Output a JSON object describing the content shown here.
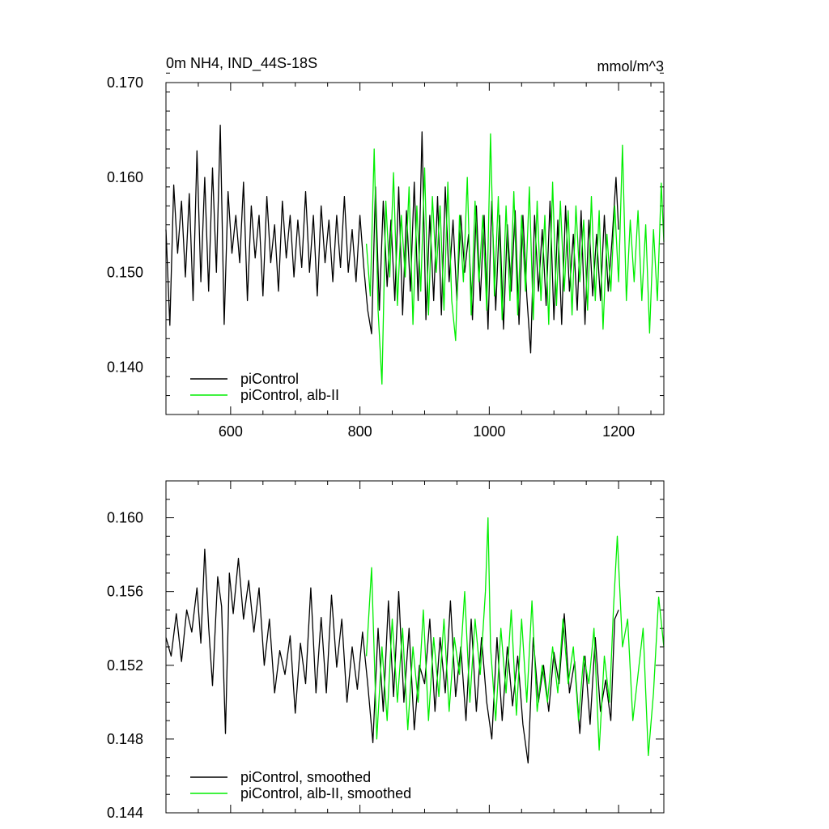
{
  "colors": {
    "control": "#000000",
    "alb": "#00ee00"
  },
  "chart_data": [
    {
      "type": "line",
      "title": "0m NH4, IND_44S-18S",
      "units": "mmol/m^3",
      "xlim": [
        500,
        1270
      ],
      "ylim": [
        0.135,
        0.17
      ],
      "x_ticks": [
        600,
        800,
        1000,
        1200
      ],
      "x_tick_labels": [
        "600",
        "800",
        "1000",
        "1200"
      ],
      "x_minor_step": 50,
      "y_ticks": [
        0.14,
        0.15,
        0.16,
        0.17
      ],
      "y_tick_labels": [
        "0.140",
        "0.150",
        "0.160",
        "0.170"
      ],
      "y_minor_step": 0.002,
      "legend": [
        "piControl",
        "piControl, alb-II"
      ],
      "legend_position": "bottom-left",
      "series": [
        {
          "name": "piControl",
          "color": "#000000",
          "x": [
            500,
            506,
            512,
            518,
            524,
            530,
            536,
            542,
            548,
            554,
            560,
            566,
            572,
            578,
            584,
            590,
            596,
            602,
            608,
            614,
            620,
            626,
            632,
            638,
            644,
            650,
            656,
            662,
            668,
            674,
            680,
            686,
            692,
            698,
            704,
            710,
            716,
            722,
            728,
            734,
            740,
            746,
            752,
            758,
            764,
            770,
            776,
            782,
            788,
            794,
            800,
            806,
            812,
            818,
            824,
            830,
            836,
            842,
            848,
            854,
            860,
            866,
            872,
            878,
            884,
            890,
            896,
            902,
            908,
            914,
            920,
            926,
            932,
            938,
            944,
            950,
            956,
            962,
            968,
            974,
            980,
            986,
            992,
            998,
            1004,
            1010,
            1016,
            1022,
            1028,
            1034,
            1040,
            1046,
            1052,
            1058,
            1064,
            1070,
            1076,
            1082,
            1088,
            1094,
            1100,
            1106,
            1112,
            1118,
            1124,
            1130,
            1136,
            1142,
            1148,
            1154,
            1160,
            1166,
            1172,
            1178,
            1184,
            1190,
            1196,
            1200
          ],
          "y": [
            0.1545,
            0.1444,
            0.1592,
            0.152,
            0.1575,
            0.1495,
            0.1583,
            0.147,
            0.1628,
            0.149,
            0.16,
            0.148,
            0.161,
            0.15,
            0.1655,
            0.1445,
            0.1585,
            0.152,
            0.156,
            0.151,
            0.1595,
            0.147,
            0.157,
            0.1515,
            0.156,
            0.1475,
            0.158,
            0.151,
            0.155,
            0.148,
            0.1575,
            0.1515,
            0.156,
            0.1495,
            0.1555,
            0.1505,
            0.1585,
            0.15,
            0.156,
            0.1475,
            0.157,
            0.151,
            0.1555,
            0.149,
            0.156,
            0.1505,
            0.158,
            0.15,
            0.1545,
            0.149,
            0.156,
            0.1505,
            0.146,
            0.1435,
            0.159,
            0.146,
            0.1575,
            0.1485,
            0.1555,
            0.147,
            0.159,
            0.1455,
            0.1565,
            0.148,
            0.1595,
            0.147,
            0.1648,
            0.145,
            0.156,
            0.147,
            0.158,
            0.1455,
            0.159,
            0.149,
            0.1555,
            0.147,
            0.156,
            0.15,
            0.154,
            0.145,
            0.157,
            0.147,
            0.156,
            0.144,
            0.1575,
            0.146,
            0.156,
            0.144,
            0.155,
            0.148,
            0.1565,
            0.1445,
            0.156,
            0.1475,
            0.1415,
            0.156,
            0.148,
            0.1545,
            0.1465,
            0.1575,
            0.145,
            0.1555,
            0.1445,
            0.157,
            0.148,
            0.154,
            0.146,
            0.1565,
            0.1445,
            0.1555,
            0.1475,
            0.154,
            0.147,
            0.156,
            0.148,
            0.1535,
            0.16,
            0.1545
          ]
        },
        {
          "name": "piControl, alb-II",
          "color": "#00ee00",
          "x": [
            810,
            816,
            822,
            828,
            834,
            840,
            846,
            852,
            858,
            864,
            870,
            876,
            882,
            888,
            894,
            900,
            906,
            912,
            918,
            924,
            930,
            936,
            942,
            948,
            954,
            960,
            966,
            972,
            978,
            984,
            990,
            996,
            1002,
            1008,
            1014,
            1020,
            1026,
            1032,
            1038,
            1044,
            1050,
            1056,
            1062,
            1068,
            1074,
            1080,
            1086,
            1092,
            1098,
            1104,
            1110,
            1116,
            1122,
            1128,
            1134,
            1140,
            1146,
            1152,
            1158,
            1164,
            1170,
            1176,
            1182,
            1188,
            1194,
            1200,
            1206,
            1212,
            1218,
            1224,
            1230,
            1236,
            1242,
            1248,
            1254,
            1260,
            1266,
            1270
          ],
          "y": [
            0.153,
            0.1475,
            0.163,
            0.146,
            0.1382,
            0.1575,
            0.1495,
            0.1605,
            0.1465,
            0.156,
            0.1495,
            0.159,
            0.1445,
            0.157,
            0.148,
            0.161,
            0.1455,
            0.158,
            0.15,
            0.157,
            0.146,
            0.1595,
            0.147,
            0.1428,
            0.156,
            0.149,
            0.16,
            0.1455,
            0.1575,
            0.149,
            0.156,
            0.146,
            0.1646,
            0.1475,
            0.158,
            0.145,
            0.157,
            0.147,
            0.1585,
            0.1455,
            0.156,
            0.148,
            0.159,
            0.145,
            0.1575,
            0.147,
            0.156,
            0.1445,
            0.1595,
            0.1465,
            0.1575,
            0.148,
            0.1565,
            0.1455,
            0.157,
            0.149,
            0.1555,
            0.146,
            0.158,
            0.147,
            0.1565,
            0.144,
            0.154,
            0.148,
            0.157,
            0.149,
            0.1634,
            0.147,
            0.1555,
            0.149,
            0.1565,
            0.147,
            0.155,
            0.1436,
            0.1545,
            0.147,
            0.1594,
            0.1532
          ]
        }
      ]
    },
    {
      "type": "line",
      "title": "",
      "units": "",
      "xlim": [
        500,
        1270
      ],
      "ylim": [
        0.144,
        0.162
      ],
      "x_ticks": [
        600,
        800,
        1000,
        1200
      ],
      "x_tick_labels": [],
      "x_minor_step": 50,
      "y_ticks": [
        0.144,
        0.148,
        0.152,
        0.156,
        0.16
      ],
      "y_tick_labels": [
        "0.144",
        "0.148",
        "0.152",
        "0.156",
        "0.160"
      ],
      "y_minor_step": 0.001,
      "legend": [
        "piControl, smoothed",
        "piControl, alb-II, smoothed"
      ],
      "legend_position": "bottom-left",
      "series": [
        {
          "name": "piControl, smoothed",
          "color": "#000000",
          "x": [
            500,
            508,
            516,
            524,
            532,
            540,
            548,
            554,
            560,
            566,
            572,
            580,
            586,
            592,
            598,
            604,
            612,
            620,
            628,
            636,
            644,
            652,
            660,
            668,
            676,
            684,
            692,
            700,
            708,
            716,
            724,
            732,
            740,
            748,
            756,
            764,
            772,
            780,
            788,
            796,
            804,
            812,
            820,
            828,
            836,
            844,
            852,
            860,
            868,
            876,
            884,
            892,
            900,
            908,
            916,
            924,
            932,
            940,
            948,
            956,
            964,
            972,
            980,
            988,
            996,
            1004,
            1012,
            1020,
            1028,
            1036,
            1044,
            1052,
            1060,
            1068,
            1076,
            1084,
            1092,
            1100,
            1108,
            1116,
            1124,
            1132,
            1140,
            1148,
            1156,
            1164,
            1172,
            1180,
            1188,
            1194,
            1200
          ],
          "y": [
            0.1535,
            0.1525,
            0.1548,
            0.1522,
            0.155,
            0.1538,
            0.1562,
            0.1532,
            0.1583,
            0.1541,
            0.1509,
            0.1568,
            0.1552,
            0.1483,
            0.157,
            0.1548,
            0.1578,
            0.1545,
            0.1566,
            0.1538,
            0.1562,
            0.152,
            0.1545,
            0.1505,
            0.1528,
            0.1515,
            0.1536,
            0.1494,
            0.1532,
            0.151,
            0.1562,
            0.1505,
            0.1546,
            0.1505,
            0.1558,
            0.1519,
            0.1545,
            0.15,
            0.153,
            0.1507,
            0.1538,
            0.151,
            0.1478,
            0.154,
            0.1495,
            0.1555,
            0.1503,
            0.156,
            0.15,
            0.154,
            0.1485,
            0.152,
            0.151,
            0.1545,
            0.1495,
            0.1535,
            0.1505,
            0.1555,
            0.1503,
            0.153,
            0.149,
            0.1545,
            0.1495,
            0.1535,
            0.15,
            0.148,
            0.1535,
            0.149,
            0.153,
            0.1498,
            0.1525,
            0.1488,
            0.1467,
            0.1535,
            0.15,
            0.152,
            0.1495,
            0.1527,
            0.151,
            0.1548,
            0.1505,
            0.1522,
            0.1483,
            0.1525,
            0.1488,
            0.1535,
            0.1495,
            0.1512,
            0.149,
            0.1545,
            0.155
          ]
        },
        {
          "name": "piControl, alb-II, smoothed",
          "color": "#00ee00",
          "x": [
            810,
            818,
            826,
            834,
            842,
            850,
            858,
            866,
            874,
            882,
            890,
            898,
            906,
            914,
            922,
            930,
            938,
            946,
            954,
            962,
            970,
            978,
            986,
            994,
            998,
            1002,
            1010,
            1018,
            1026,
            1034,
            1042,
            1050,
            1058,
            1066,
            1074,
            1082,
            1090,
            1098,
            1106,
            1114,
            1122,
            1130,
            1138,
            1146,
            1154,
            1162,
            1170,
            1178,
            1186,
            1192,
            1198,
            1206,
            1214,
            1222,
            1230,
            1238,
            1246,
            1254,
            1262,
            1270
          ],
          "y": [
            0.1525,
            0.1573,
            0.148,
            0.153,
            0.149,
            0.1545,
            0.15,
            0.154,
            0.1485,
            0.153,
            0.15,
            0.155,
            0.149,
            0.1535,
            0.1503,
            0.1545,
            0.1495,
            0.1535,
            0.1515,
            0.156,
            0.15,
            0.1545,
            0.1515,
            0.156,
            0.16,
            0.153,
            0.149,
            0.154,
            0.1505,
            0.155,
            0.1493,
            0.1545,
            0.15,
            0.1555,
            0.1495,
            0.152,
            0.15,
            0.153,
            0.1505,
            0.1545,
            0.151,
            0.153,
            0.149,
            0.1525,
            0.151,
            0.154,
            0.1474,
            0.1525,
            0.15,
            0.155,
            0.159,
            0.153,
            0.1545,
            0.149,
            0.1515,
            0.154,
            0.1471,
            0.1505,
            0.1557,
            0.153
          ]
        }
      ]
    }
  ]
}
